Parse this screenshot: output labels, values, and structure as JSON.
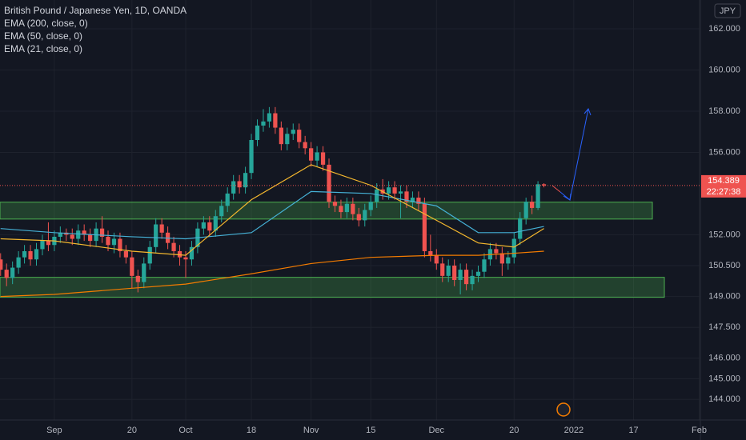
{
  "chart_data": {
    "type": "candlestick",
    "title": "British Pound / Japanese Yen, 1D, OANDA",
    "currency": "JPY",
    "last_price": 154.389,
    "countdown": "22:27:38",
    "open": [
      150.8,
      150.3,
      149.9,
      150.4,
      150.9,
      151.2,
      150.8,
      151.3,
      151.7,
      151.5,
      151.9,
      152.1,
      152.0,
      151.8,
      152.2,
      152.0,
      151.7,
      152.3,
      151.9,
      151.5,
      151.8,
      151.2,
      150.9,
      150.0,
      149.7,
      150.6,
      151.4,
      152.5,
      152.1,
      151.6,
      151.2,
      150.9,
      150.8,
      151.4,
      152.3,
      152.6,
      152.2,
      152.9,
      153.4,
      154.0,
      154.6,
      154.3,
      155.0,
      156.6,
      157.3,
      157.5,
      157.9,
      157.2,
      156.4,
      156.9,
      157.1,
      156.5,
      156.2,
      155.6,
      156.0,
      155.4,
      153.6,
      153.4,
      153.1,
      153.5,
      153.0,
      152.7,
      153.2,
      153.6,
      154.2,
      154.0,
      154.3,
      154.0,
      154.1,
      153.6,
      153.8,
      153.5,
      151.2,
      151.0,
      150.6,
      150.0,
      150.5,
      149.8,
      150.3,
      149.6,
      150.0,
      150.2,
      150.8,
      151.3,
      151.1,
      150.6,
      150.9,
      151.8,
      152.8,
      153.6,
      153.3,
      154.45
    ],
    "high": [
      151.1,
      150.6,
      150.7,
      151.2,
      151.5,
      151.5,
      151.6,
      152.0,
      152.6,
      152.2,
      152.4,
      152.3,
      152.3,
      152.5,
      152.5,
      152.3,
      152.6,
      152.9,
      152.2,
      152.1,
      152.1,
      151.5,
      151.2,
      150.3,
      150.9,
      151.7,
      152.8,
      152.8,
      152.4,
      151.9,
      151.5,
      151.2,
      151.7,
      152.6,
      152.9,
      152.9,
      153.2,
      153.7,
      154.3,
      154.9,
      154.9,
      155.3,
      156.9,
      157.6,
      158.1,
      158.2,
      158.2,
      157.5,
      157.2,
      157.4,
      157.4,
      156.8,
      156.5,
      156.3,
      156.3,
      155.7,
      153.9,
      153.7,
      153.8,
      153.8,
      153.3,
      153.5,
      153.9,
      154.5,
      154.7,
      154.6,
      154.6,
      154.4,
      154.4,
      154.1,
      154.1,
      153.8,
      152.0,
      151.3,
      150.9,
      150.8,
      150.8,
      150.6,
      150.6,
      150.3,
      150.5,
      151.1,
      151.6,
      151.6,
      151.4,
      151.2,
      152.1,
      153.1,
      153.8,
      153.9,
      154.6,
      154.5
    ],
    "low": [
      150.0,
      149.5,
      149.6,
      150.1,
      150.6,
      150.5,
      150.5,
      151.0,
      151.2,
      151.2,
      151.6,
      151.7,
      151.5,
      151.5,
      151.7,
      151.4,
      151.4,
      151.6,
      151.2,
      151.1,
      150.9,
      150.6,
      149.4,
      149.2,
      149.4,
      150.3,
      151.1,
      151.8,
      151.3,
      150.9,
      150.5,
      149.9,
      150.5,
      151.1,
      152.0,
      151.9,
      151.9,
      152.6,
      153.1,
      153.7,
      154.0,
      154.0,
      154.7,
      156.3,
      157.0,
      157.2,
      156.9,
      156.1,
      156.1,
      156.6,
      156.2,
      155.9,
      155.3,
      155.3,
      155.1,
      153.3,
      153.1,
      152.8,
      152.8,
      152.7,
      152.4,
      152.4,
      152.9,
      153.3,
      153.7,
      153.7,
      153.7,
      152.8,
      153.3,
      153.3,
      153.2,
      150.9,
      150.7,
      150.3,
      149.7,
      149.7,
      149.5,
      149.1,
      149.3,
      149.3,
      149.7,
      149.9,
      150.5,
      150.8,
      150.0,
      150.3,
      150.6,
      151.5,
      152.5,
      153.0,
      153.2,
      154.3
    ],
    "close": [
      150.3,
      149.9,
      150.4,
      150.9,
      151.2,
      150.8,
      151.3,
      151.7,
      151.5,
      151.9,
      152.1,
      152.0,
      151.8,
      152.2,
      152.0,
      151.7,
      152.3,
      151.9,
      151.5,
      151.8,
      151.2,
      150.9,
      150.0,
      149.7,
      150.6,
      151.4,
      152.5,
      152.1,
      151.6,
      151.2,
      150.9,
      150.8,
      151.4,
      152.3,
      152.6,
      152.2,
      152.9,
      153.4,
      154.0,
      154.6,
      154.3,
      155.0,
      156.6,
      157.3,
      157.5,
      157.9,
      157.2,
      156.4,
      156.9,
      157.1,
      156.5,
      156.2,
      155.6,
      156.0,
      155.4,
      153.6,
      153.4,
      153.1,
      153.5,
      153.0,
      152.7,
      153.2,
      153.6,
      154.2,
      154.0,
      154.3,
      154.0,
      154.1,
      153.6,
      153.8,
      153.5,
      151.2,
      151.0,
      150.6,
      150.0,
      150.5,
      149.8,
      150.3,
      149.6,
      150.0,
      150.2,
      150.8,
      151.3,
      151.1,
      150.6,
      150.9,
      151.8,
      152.8,
      153.6,
      153.3,
      154.45,
      154.389
    ],
    "up_color": "#26a69a",
    "down_color": "#ef5350",
    "series": [
      {
        "name": "EMA (200, close, 0)",
        "color": "#f57c00",
        "x": [
          0,
          9,
          22,
          31,
          42,
          52,
          62,
          73,
          80,
          86,
          91
        ],
        "values": [
          149.0,
          149.1,
          149.4,
          149.6,
          150.1,
          150.6,
          150.9,
          151.0,
          151.0,
          151.1,
          151.2
        ]
      },
      {
        "name": "EMA (50, close, 0)",
        "color": "#45b1d6",
        "x": [
          0,
          9,
          22,
          31,
          42,
          52,
          62,
          73,
          80,
          86,
          91
        ],
        "values": [
          152.3,
          152.1,
          151.9,
          151.8,
          152.1,
          154.1,
          154.0,
          153.4,
          152.1,
          152.1,
          152.4
        ]
      },
      {
        "name": "EMA (21, close, 0)",
        "color": "#f5b82e",
        "x": [
          0,
          9,
          22,
          31,
          42,
          52,
          62,
          73,
          80,
          86,
          91
        ],
        "values": [
          151.8,
          151.7,
          151.2,
          151.0,
          153.7,
          155.4,
          154.4,
          152.7,
          151.6,
          151.4,
          152.3
        ]
      }
    ],
    "zones": [
      [
        152.76,
        153.58
      ],
      [
        148.96,
        149.93
      ]
    ],
    "xlim": [
      -0.1,
      117.2
    ],
    "xticks": [
      {
        "value": 9,
        "label": "Sep"
      },
      {
        "value": 22,
        "label": "20"
      },
      {
        "value": 31,
        "label": "Oct"
      },
      {
        "value": 42,
        "label": "18"
      },
      {
        "value": 52,
        "label": "Nov"
      },
      {
        "value": 62,
        "label": "15"
      },
      {
        "value": 73,
        "label": "Dec"
      },
      {
        "value": 86,
        "label": "20"
      },
      {
        "value": 96,
        "label": "2022"
      },
      {
        "value": 106,
        "label": "17"
      },
      {
        "value": 117,
        "label": "Feb"
      }
    ],
    "ylim": [
      143.0,
      163.4
    ],
    "yticks": [
      {
        "value": 162,
        "label": "162.000"
      },
      {
        "value": 160,
        "label": "160.000"
      },
      {
        "value": 158,
        "label": "158.000"
      },
      {
        "value": 156,
        "label": "156.000"
      },
      {
        "value": 152,
        "label": "152.000"
      },
      {
        "value": 150.5,
        "label": "150.500"
      },
      {
        "value": 149,
        "label": "149.000"
      },
      {
        "value": 147.5,
        "label": "147.500"
      },
      {
        "value": 146,
        "label": "146.000"
      },
      {
        "value": 145,
        "label": "145.000"
      },
      {
        "value": 144,
        "label": "144.000"
      }
    ],
    "grid": true
  }
}
